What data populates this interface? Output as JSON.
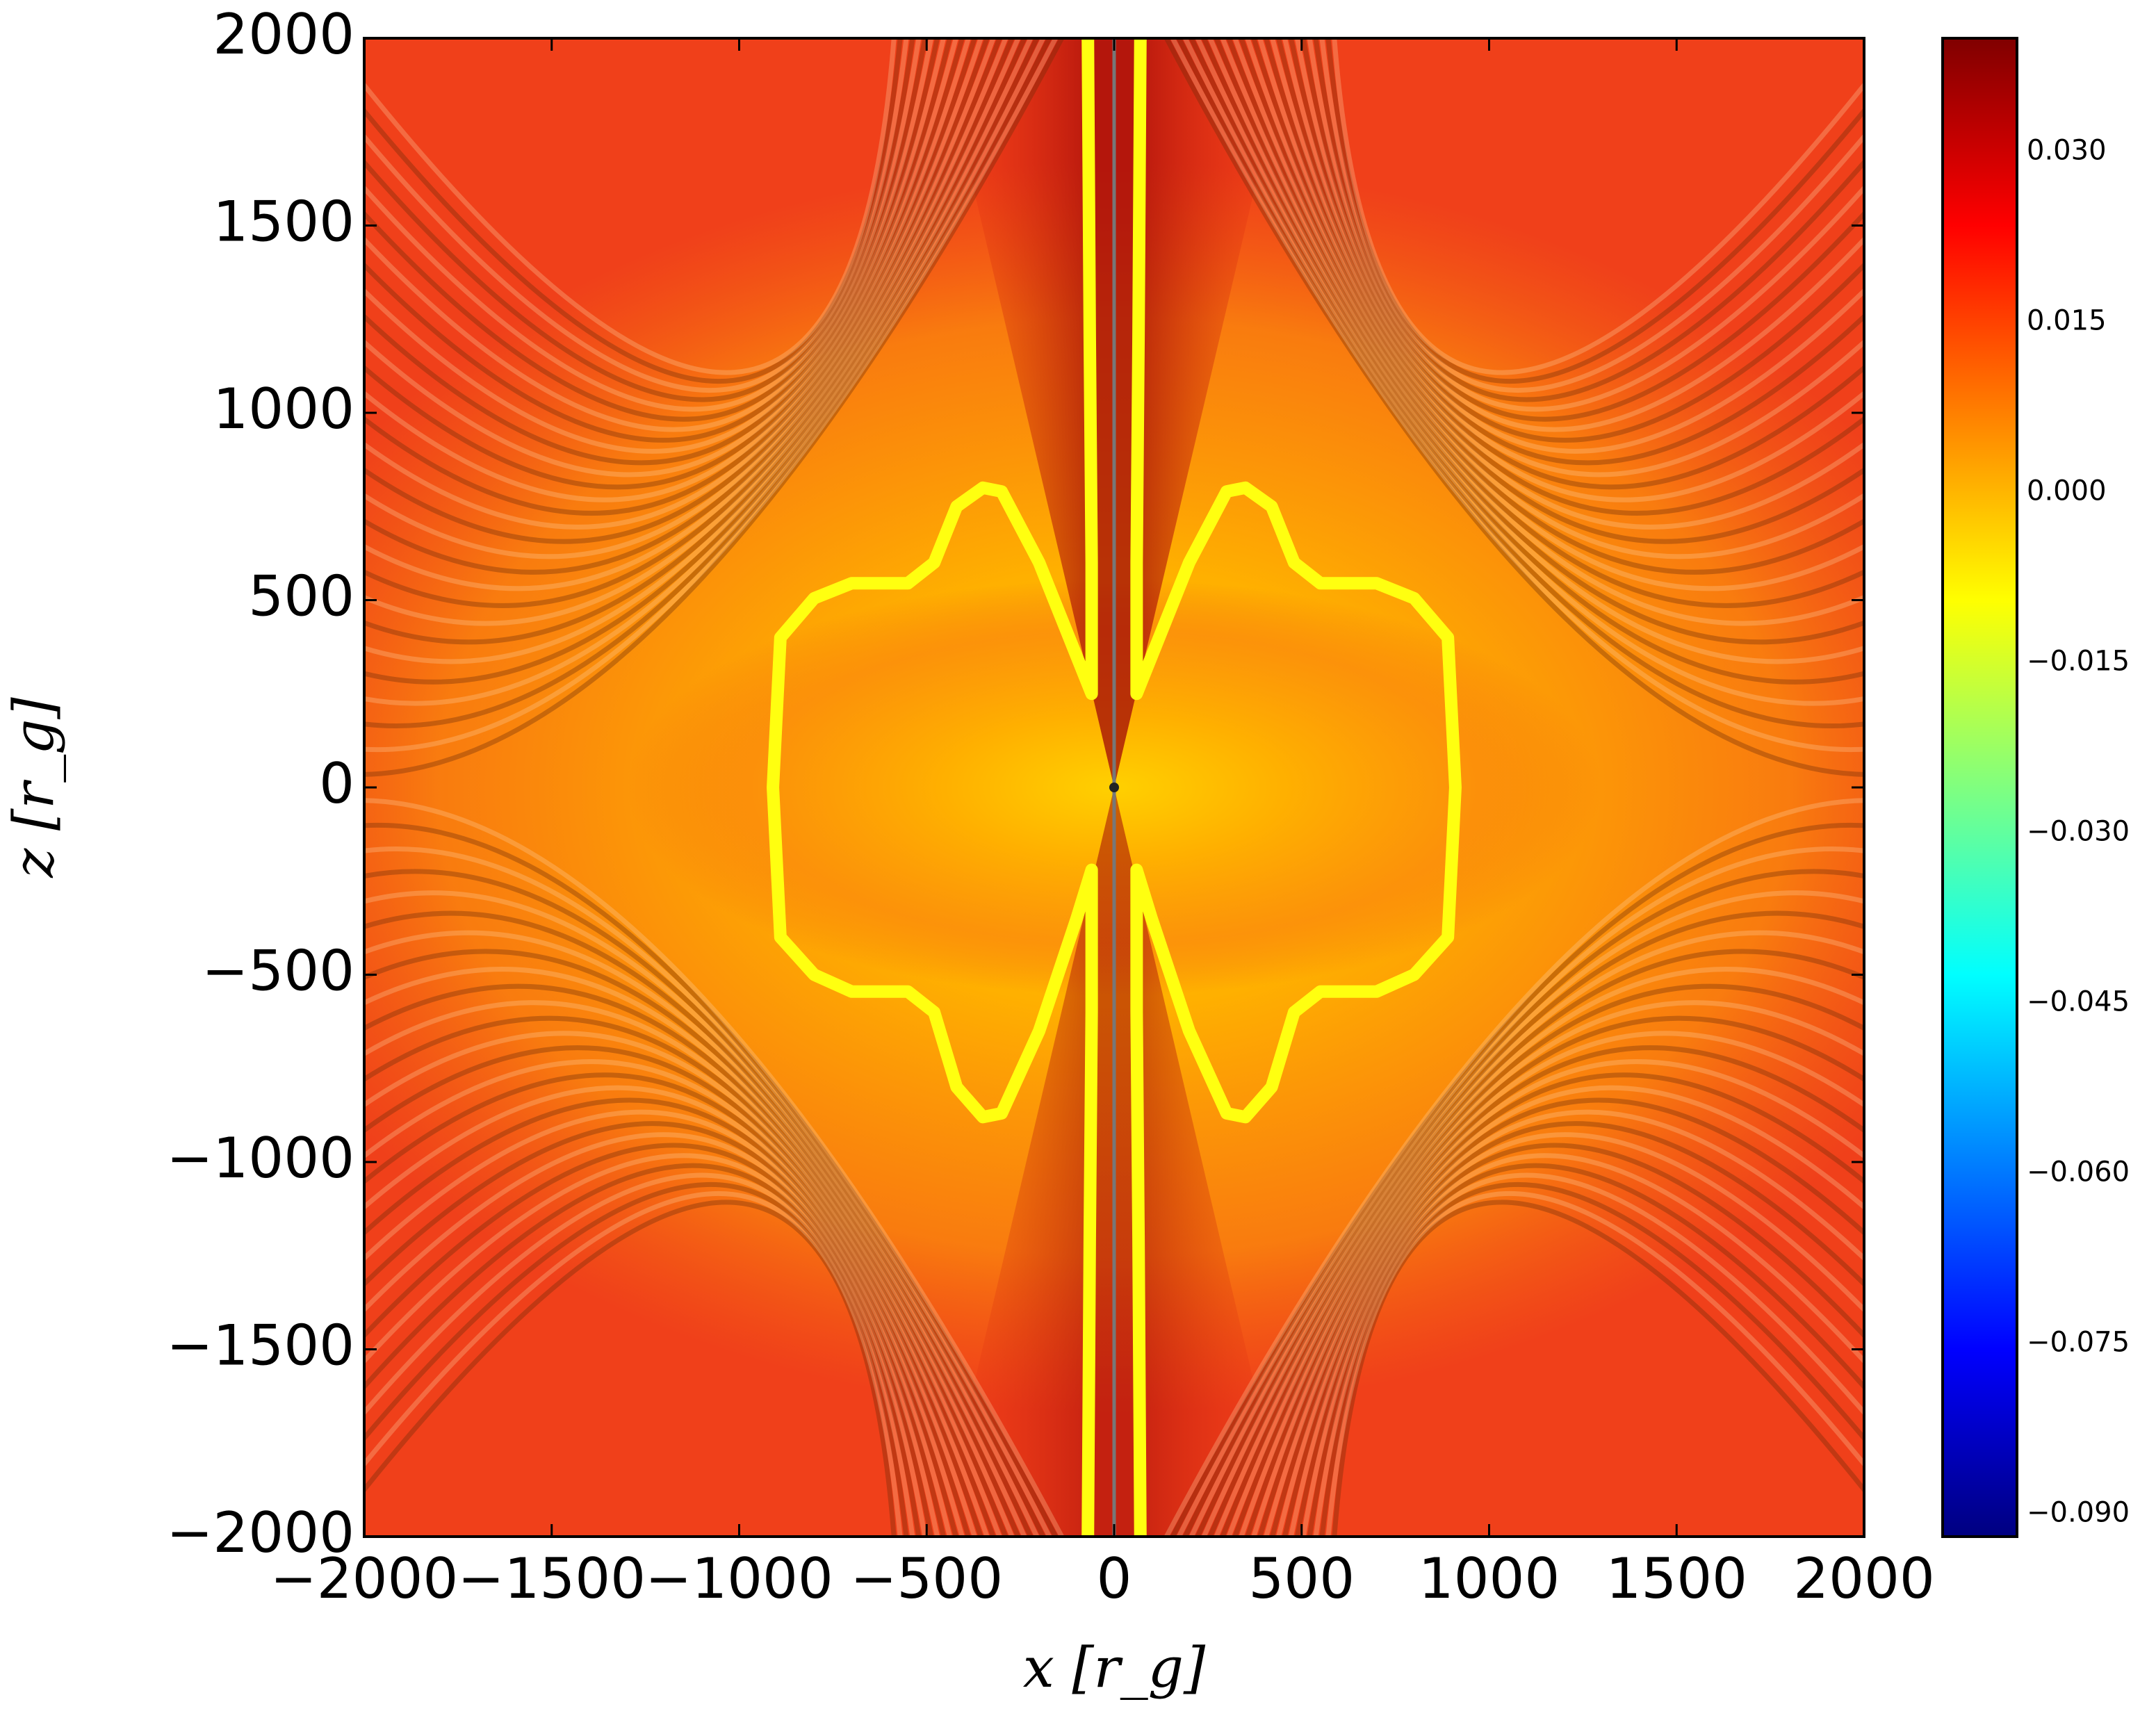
{
  "chart_data": {
    "type": "heatmap",
    "xlabel": "x [r_g]",
    "ylabel": "z [r_g]",
    "xlim": [
      -2000,
      2000
    ],
    "ylim": [
      -2000,
      2000
    ],
    "xticks": [
      {
        "value": -2000,
        "label": "−2000"
      },
      {
        "value": -1500,
        "label": "−1500"
      },
      {
        "value": -1000,
        "label": "−1000"
      },
      {
        "value": -500,
        "label": "−500"
      },
      0,
      500,
      1000,
      1500,
      2000
    ],
    "yticks": [
      {
        "value": -2000,
        "label": "−2000"
      },
      {
        "value": -1500,
        "label": "−1500"
      },
      {
        "value": -1000,
        "label": "−1000"
      },
      {
        "value": -500,
        "label": "−500"
      },
      0,
      500,
      1000,
      1500,
      2000
    ],
    "colormap": "jet",
    "clim": [
      -0.092,
      0.04
    ],
    "cticks": [
      {
        "value": 0.03,
        "label": "0.030"
      },
      {
        "value": 0.015,
        "label": "0.015"
      },
      {
        "value": 0,
        "label": "0.000"
      },
      {
        "value": -0.015,
        "label": "−0.015"
      },
      {
        "value": -0.03,
        "label": "−0.030"
      },
      {
        "value": -0.045,
        "label": "−0.045"
      },
      {
        "value": -0.06,
        "label": "−0.060"
      },
      {
        "value": -0.075,
        "label": "−0.075"
      },
      {
        "value": -0.09,
        "label": "−0.090"
      }
    ]
  }
}
